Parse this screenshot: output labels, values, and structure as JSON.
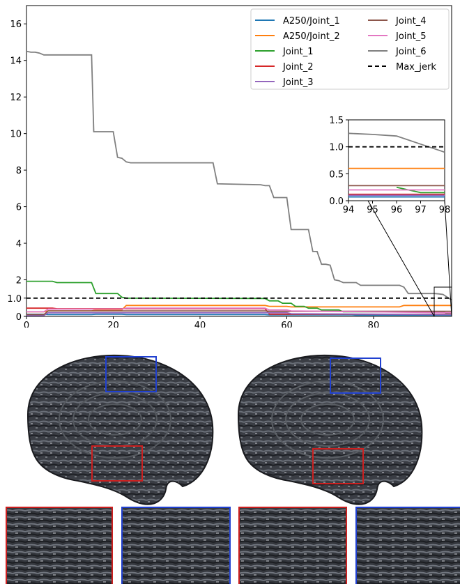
{
  "chart_data": {
    "type": "line",
    "xlim": [
      0,
      98
    ],
    "ylim": [
      0,
      17
    ],
    "x_ticks": [
      0,
      20,
      40,
      60,
      80
    ],
    "y_ticks": [
      0,
      1.0,
      2,
      4,
      6,
      8,
      10,
      12,
      14,
      16
    ],
    "y_tick_labels": [
      "0",
      "1.0",
      "2",
      "4",
      "6",
      "8",
      "10",
      "12",
      "14",
      "16"
    ],
    "grid": false,
    "legend_position": "top-right",
    "legend_columns": 2,
    "series": [
      {
        "name": "A250/Joint_1",
        "color": "#1f77b4",
        "style": "solid",
        "x": [
          0,
          4,
          5,
          15,
          16,
          22,
          23,
          55,
          56,
          75,
          76,
          98
        ],
        "y": [
          0.12,
          0.12,
          0.1,
          0.1,
          0.12,
          0.12,
          0.1,
          0.1,
          0.08,
          0.08,
          0.07,
          0.07
        ]
      },
      {
        "name": "A250/Joint_2",
        "color": "#ff7f0e",
        "style": "solid",
        "x": [
          0,
          4,
          5,
          15,
          16,
          22,
          23,
          55,
          56,
          60,
          61,
          86,
          87,
          98
        ],
        "y": [
          0.25,
          0.25,
          0.3,
          0.3,
          0.35,
          0.35,
          0.6,
          0.6,
          0.55,
          0.55,
          0.52,
          0.52,
          0.6,
          0.6
        ]
      },
      {
        "name": "Joint_1",
        "color": "#2ca02c",
        "style": "solid",
        "x": [
          0,
          6,
          7,
          15,
          16,
          21,
          22,
          23,
          55,
          56,
          58,
          59,
          61,
          62,
          64,
          65,
          67,
          68,
          72,
          73,
          96,
          97,
          98
        ],
        "y": [
          1.92,
          1.92,
          1.85,
          1.85,
          1.25,
          1.25,
          1.05,
          1.0,
          0.98,
          0.85,
          0.85,
          0.72,
          0.72,
          0.55,
          0.55,
          0.45,
          0.45,
          0.35,
          0.35,
          0.25,
          0.25,
          0.15,
          0.15
        ]
      },
      {
        "name": "Joint_2",
        "color": "#d62728",
        "style": "solid",
        "x": [
          0,
          6,
          7,
          55,
          56,
          98
        ],
        "y": [
          0.45,
          0.45,
          0.42,
          0.42,
          0.12,
          0.12
        ]
      },
      {
        "name": "Joint_3",
        "color": "#9467bd",
        "style": "solid",
        "x": [
          0,
          4,
          5,
          60,
          61,
          98
        ],
        "y": [
          0.05,
          0.05,
          0.2,
          0.2,
          0.15,
          0.1
        ]
      },
      {
        "name": "Joint_4",
        "color": "#8c564b",
        "style": "solid",
        "x": [
          0,
          4,
          5,
          55,
          56,
          75,
          76,
          98
        ],
        "y": [
          0.1,
          0.1,
          0.3,
          0.3,
          0.28,
          0.28,
          0.28,
          0.28
        ]
      },
      {
        "name": "Joint_5",
        "color": "#e377c2",
        "style": "solid",
        "x": [
          0,
          4,
          5,
          22,
          23,
          55,
          56,
          60,
          61,
          98
        ],
        "y": [
          0.25,
          0.25,
          0.4,
          0.4,
          0.45,
          0.45,
          0.35,
          0.35,
          0.3,
          0.2
        ]
      },
      {
        "name": "Joint_6",
        "color": "#7f7f7f",
        "style": "solid",
        "x": [
          0,
          1,
          2,
          3,
          4,
          15,
          15.5,
          16,
          20,
          21,
          22,
          23,
          24,
          43,
          44,
          54,
          55,
          56,
          57,
          60,
          61,
          65,
          66,
          67,
          68,
          69,
          70,
          71,
          72,
          73,
          76,
          77,
          86,
          87,
          88,
          89,
          93,
          94,
          95,
          96,
          97,
          98
        ],
        "y": [
          14.5,
          14.45,
          14.45,
          14.4,
          14.3,
          14.3,
          10.1,
          10.1,
          10.1,
          8.7,
          8.65,
          8.45,
          8.4,
          8.4,
          7.25,
          7.2,
          7.15,
          7.15,
          6.5,
          6.5,
          4.75,
          4.75,
          3.55,
          3.55,
          2.85,
          2.85,
          2.8,
          2.0,
          1.95,
          1.85,
          1.85,
          1.7,
          1.7,
          1.6,
          1.25,
          1.25,
          1.25,
          1.25,
          1.23,
          1.2,
          1.05,
          0.9
        ]
      },
      {
        "name": "Max_jerk",
        "color": "#000000",
        "style": "dashed",
        "x": [
          0,
          98
        ],
        "y": [
          1.0,
          1.0
        ]
      }
    ],
    "inset": {
      "xlim": [
        94,
        98
      ],
      "ylim": [
        0,
        1.5
      ],
      "x_ticks": [
        94,
        95,
        96,
        97,
        98
      ],
      "y_ticks": [
        0.0,
        0.5,
        1.0,
        1.5
      ],
      "y_tick_labels": [
        "0.0",
        "0.5",
        "1.0",
        "1.5"
      ]
    }
  },
  "photos": {
    "main_left": "printed-spiral-left",
    "main_right": "printed-spiral-right",
    "highlight_colors": {
      "red": "#cc2020",
      "blue": "#2040d0"
    }
  }
}
